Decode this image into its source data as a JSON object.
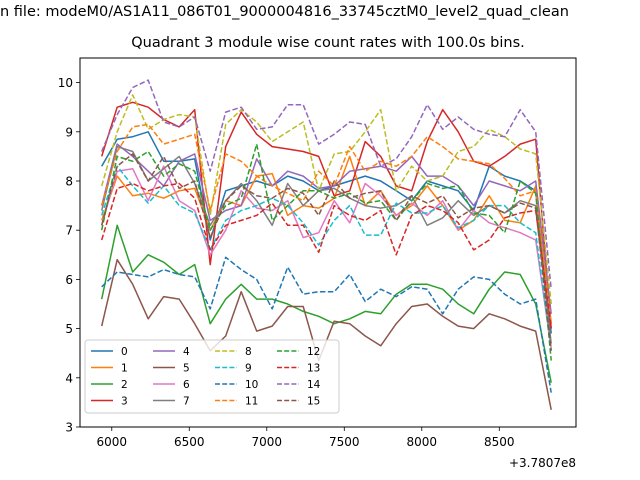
{
  "chart_data": {
    "type": "line",
    "suptitle": "n file: modeM0/AS1A11_086T01_9000004816_33745cztM0_level2_quad_clean",
    "title": "Quadrant 3 module wise count rates with 100.0s bins.",
    "xlabel": "",
    "ylabel": "",
    "x_offset_label": "+3.7807e8",
    "xlim": [
      5795,
      8995
    ],
    "ylim": [
      3,
      10.5
    ],
    "xticks": [
      6000,
      6500,
      7000,
      7500,
      8000,
      8500
    ],
    "yticks": [
      3,
      4,
      5,
      6,
      7,
      8,
      9,
      10
    ],
    "grid": false,
    "legend": {
      "placement": "lower-left",
      "columns": 4
    },
    "x": [
      5935,
      6035,
      6135,
      6235,
      6335,
      6435,
      6535,
      6635,
      6735,
      6835,
      6935,
      7035,
      7135,
      7235,
      7335,
      7435,
      7535,
      7635,
      7735,
      7835,
      7935,
      8035,
      8135,
      8235,
      8335,
      8435,
      8535,
      8635,
      8735,
      8835
    ],
    "series": [
      {
        "name": "0",
        "color": "#1f77b4",
        "style": "solid",
        "values": [
          8.3,
          8.85,
          8.9,
          9.0,
          8.4,
          8.4,
          8.45,
          6.8,
          7.8,
          7.9,
          8.0,
          7.9,
          8.1,
          8.0,
          7.8,
          7.9,
          8.0,
          8.1,
          8.0,
          7.8,
          7.6,
          8.0,
          7.9,
          7.8,
          7.4,
          8.3,
          8.1,
          8.0,
          7.8,
          4.9
        ]
      },
      {
        "name": "1",
        "color": "#ff7f0e",
        "style": "solid",
        "values": [
          7.2,
          8.1,
          7.7,
          7.75,
          7.65,
          7.8,
          7.85,
          7.0,
          7.6,
          7.5,
          8.1,
          8.15,
          7.3,
          7.5,
          7.45,
          7.65,
          8.5,
          7.5,
          7.8,
          7.3,
          7.5,
          7.9,
          7.5,
          7.0,
          7.2,
          7.7,
          7.2,
          7.15,
          7.9,
          5.1
        ]
      },
      {
        "name": "2",
        "color": "#2ca02c",
        "style": "solid",
        "values": [
          5.6,
          7.1,
          6.15,
          6.5,
          6.35,
          6.1,
          6.3,
          5.1,
          5.6,
          5.9,
          5.6,
          5.6,
          5.5,
          5.35,
          5.25,
          5.1,
          5.2,
          5.35,
          5.3,
          5.7,
          5.9,
          5.9,
          5.8,
          5.5,
          5.3,
          5.8,
          6.15,
          6.1,
          5.5,
          3.9
        ]
      },
      {
        "name": "3",
        "color": "#d62728",
        "style": "solid",
        "values": [
          8.5,
          9.5,
          9.6,
          9.5,
          9.25,
          9.1,
          9.45,
          6.3,
          8.7,
          9.4,
          8.95,
          8.7,
          8.65,
          8.6,
          8.5,
          7.7,
          7.8,
          8.8,
          8.5,
          7.9,
          7.8,
          8.8,
          9.45,
          9.0,
          8.4,
          8.3,
          8.5,
          8.75,
          8.85,
          5.0
        ]
      },
      {
        "name": "4",
        "color": "#9467bd",
        "style": "solid",
        "values": [
          7.5,
          8.75,
          8.5,
          8.2,
          7.9,
          8.4,
          8.55,
          7.2,
          7.4,
          7.5,
          8.45,
          7.9,
          8.2,
          8.1,
          7.85,
          7.9,
          8.2,
          8.25,
          8.3,
          8.2,
          8.5,
          8.1,
          8.1,
          7.9,
          7.5,
          8.0,
          7.9,
          7.8,
          8.0,
          5.3
        ]
      },
      {
        "name": "5",
        "color": "#8c564b",
        "style": "solid",
        "values": [
          5.05,
          6.4,
          5.9,
          5.2,
          5.65,
          5.6,
          5.1,
          4.55,
          4.85,
          5.75,
          4.95,
          5.05,
          5.45,
          5.45,
          4.35,
          5.15,
          5.1,
          4.85,
          4.65,
          5.1,
          5.45,
          5.5,
          5.25,
          5.05,
          5.0,
          5.3,
          5.2,
          5.05,
          4.95,
          3.35
        ]
      },
      {
        "name": "6",
        "color": "#e377c2",
        "style": "solid",
        "values": [
          7.1,
          8.2,
          8.25,
          7.6,
          8.3,
          7.6,
          7.4,
          6.5,
          7.0,
          7.8,
          7.45,
          7.4,
          7.6,
          6.85,
          6.95,
          7.6,
          7.15,
          7.95,
          7.7,
          7.3,
          7.55,
          7.3,
          7.6,
          7.0,
          7.4,
          7.15,
          7.05,
          6.95,
          6.8,
          4.6
        ]
      },
      {
        "name": "7",
        "color": "#7f7f7f",
        "style": "solid",
        "values": [
          7.4,
          8.7,
          8.6,
          8.0,
          8.25,
          8.5,
          7.95,
          7.1,
          7.6,
          7.95,
          7.6,
          7.1,
          7.95,
          7.5,
          7.8,
          7.85,
          7.65,
          7.5,
          7.45,
          7.5,
          7.7,
          7.1,
          7.25,
          7.6,
          7.3,
          7.5,
          7.35,
          7.6,
          7.5,
          4.7
        ]
      },
      {
        "name": "8",
        "color": "#bcbd22",
        "style": "dashed",
        "values": [
          7.9,
          9.0,
          9.75,
          9.05,
          9.25,
          9.35,
          9.3,
          7.3,
          9.15,
          9.45,
          9.2,
          8.8,
          9.0,
          9.2,
          7.8,
          8.55,
          8.6,
          9.0,
          9.45,
          7.8,
          8.3,
          8.0,
          8.1,
          8.6,
          8.7,
          9.05,
          8.9,
          8.65,
          8.55,
          5.5
        ]
      },
      {
        "name": "9",
        "color": "#17becf",
        "style": "dashed",
        "values": [
          7.3,
          8.3,
          7.9,
          7.55,
          7.9,
          7.5,
          7.35,
          6.6,
          7.2,
          7.4,
          7.5,
          7.65,
          7.5,
          7.15,
          6.7,
          7.2,
          7.5,
          6.9,
          6.9,
          7.55,
          7.35,
          7.35,
          7.5,
          7.05,
          7.2,
          7.5,
          7.5,
          7.15,
          6.95,
          4.55
        ]
      },
      {
        "name": "10",
        "color": "#1f77b4",
        "style": "dashed",
        "values": [
          5.85,
          6.15,
          6.1,
          6.05,
          6.2,
          6.1,
          6.05,
          5.4,
          6.45,
          6.2,
          6.0,
          5.4,
          6.25,
          5.7,
          5.75,
          5.75,
          6.1,
          5.55,
          5.8,
          5.65,
          5.85,
          5.8,
          5.3,
          5.8,
          6.05,
          6.0,
          5.7,
          5.5,
          5.6,
          3.7
        ]
      },
      {
        "name": "11",
        "color": "#ff7f0e",
        "style": "dashed",
        "values": [
          7.5,
          8.6,
          9.1,
          9.15,
          8.75,
          8.85,
          8.95,
          7.4,
          8.55,
          8.4,
          8.1,
          7.9,
          7.75,
          7.6,
          8.2,
          7.9,
          8.7,
          8.2,
          8.4,
          8.3,
          8.5,
          8.9,
          8.7,
          8.45,
          8.4,
          8.35,
          8.05,
          7.7,
          7.8,
          5.1
        ]
      },
      {
        "name": "12",
        "color": "#2ca02c",
        "style": "dashed",
        "values": [
          7.0,
          8.5,
          8.4,
          8.6,
          8.1,
          8.35,
          8.2,
          7.0,
          7.5,
          7.65,
          8.75,
          7.2,
          7.5,
          7.8,
          7.8,
          7.65,
          7.75,
          7.55,
          7.6,
          7.2,
          7.6,
          7.95,
          7.85,
          7.9,
          7.35,
          7.3,
          6.95,
          8.0,
          7.75,
          4.35
        ]
      },
      {
        "name": "13",
        "color": "#d62728",
        "style": "dashed",
        "values": [
          6.8,
          7.85,
          7.95,
          7.8,
          7.9,
          7.95,
          7.65,
          6.6,
          7.1,
          7.2,
          7.3,
          7.55,
          7.1,
          7.1,
          6.55,
          7.5,
          7.3,
          7.2,
          7.4,
          6.5,
          7.3,
          7.5,
          7.4,
          7.15,
          6.6,
          6.8,
          7.25,
          7.35,
          7.4,
          5.0
        ]
      },
      {
        "name": "14",
        "color": "#9467bd",
        "style": "dashed",
        "values": [
          8.6,
          9.35,
          9.9,
          10.05,
          9.2,
          9.1,
          9.3,
          8.2,
          9.4,
          9.5,
          9.05,
          9.1,
          9.55,
          9.55,
          8.75,
          8.95,
          9.2,
          9.15,
          8.3,
          8.45,
          8.9,
          9.55,
          9.05,
          9.3,
          9.05,
          8.95,
          8.9,
          9.45,
          9.0,
          5.8
        ]
      },
      {
        "name": "15",
        "color": "#8c564b",
        "style": "dashed",
        "values": [
          7.1,
          8.3,
          8.55,
          8.0,
          8.5,
          7.85,
          8.0,
          6.85,
          7.6,
          7.9,
          7.7,
          7.65,
          7.85,
          7.75,
          7.3,
          8.0,
          7.65,
          7.75,
          7.8,
          7.2,
          7.7,
          7.55,
          7.7,
          7.25,
          7.45,
          7.5,
          7.35,
          7.55,
          7.45,
          4.55
        ]
      }
    ]
  }
}
